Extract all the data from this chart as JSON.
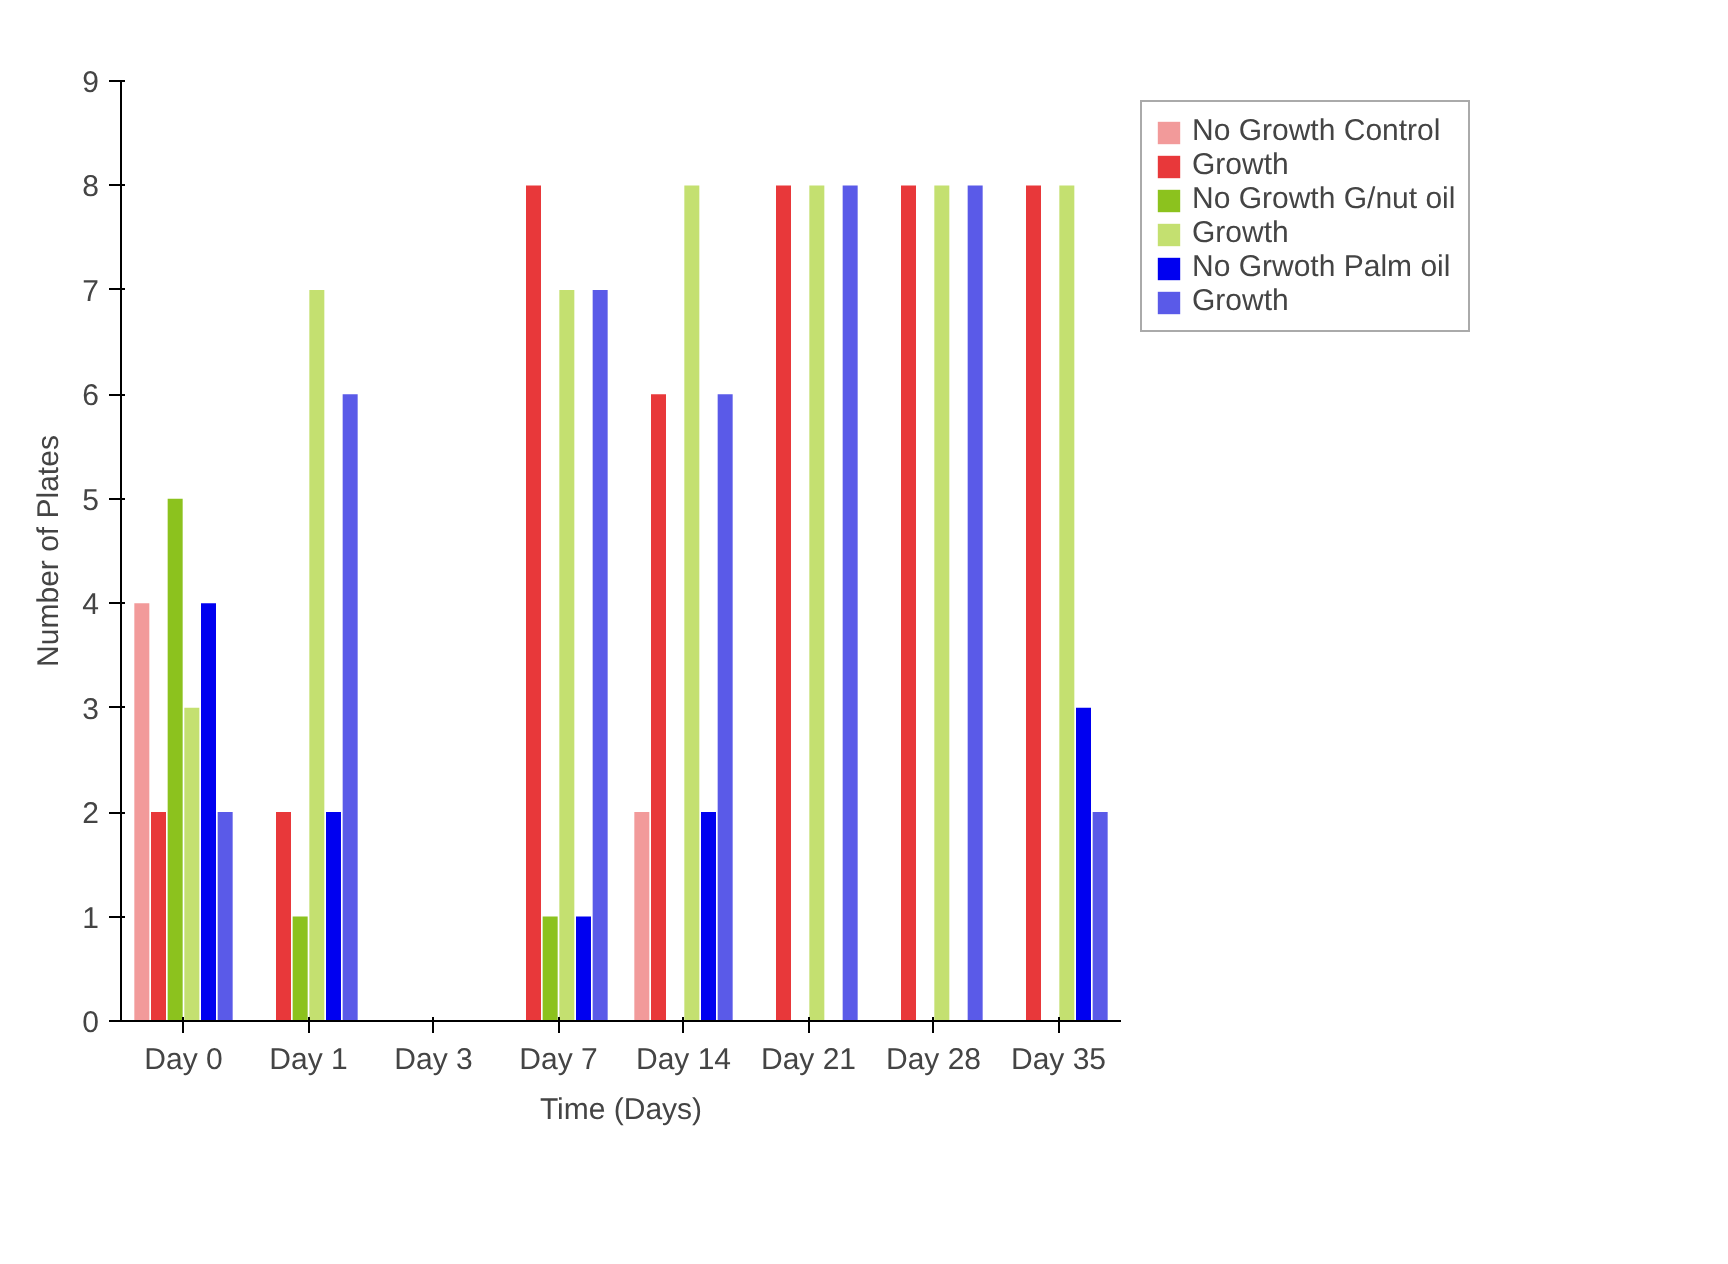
{
  "chart_data": {
    "type": "bar",
    "xlabel": "Time (Days)",
    "ylabel": "Number of Plates",
    "categories": [
      "Day 0",
      "Day 1",
      "Day 3",
      "Day 7",
      "Day 14",
      "Day 21",
      "Day 28",
      "Day 35"
    ],
    "series": [
      {
        "name": "No Growth Control",
        "color": "#f29a9a",
        "values": [
          4,
          0,
          0,
          0,
          2,
          0,
          0,
          0
        ]
      },
      {
        "name": "Growth",
        "color": "#e8383a",
        "values": [
          2,
          2,
          0,
          8,
          6,
          8,
          8,
          8
        ]
      },
      {
        "name": "No Growth G/nut oil",
        "color": "#8cc21e",
        "values": [
          5,
          1,
          0,
          1,
          0,
          0,
          0,
          0
        ]
      },
      {
        "name": "Growth",
        "color": "#c4e070",
        "values": [
          3,
          7,
          0,
          7,
          8,
          8,
          8,
          8
        ]
      },
      {
        "name": "No Grwoth Palm oil",
        "color": "#0000f0",
        "values": [
          4,
          2,
          0,
          1,
          2,
          0,
          0,
          3
        ]
      },
      {
        "name": "Growth",
        "color": "#5a5ae8",
        "values": [
          2,
          6,
          0,
          7,
          6,
          8,
          8,
          2
        ]
      }
    ],
    "ylim": [
      0,
      9
    ],
    "yticks": [
      0,
      1,
      2,
      3,
      4,
      5,
      6,
      7,
      8,
      9
    ],
    "grid": false,
    "legend": "top right"
  }
}
